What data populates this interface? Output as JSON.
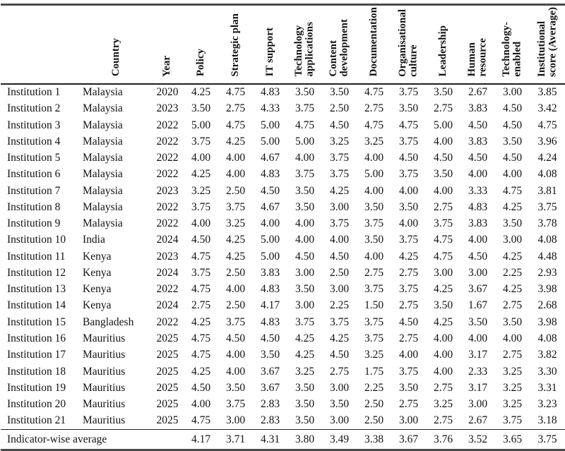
{
  "table": {
    "columns": [
      {
        "key": "institution",
        "label": ""
      },
      {
        "key": "country",
        "label": "Country"
      },
      {
        "key": "year",
        "label": "Year"
      },
      {
        "key": "policy",
        "label": "Policy"
      },
      {
        "key": "strategic_plan",
        "label": "Strategic plan"
      },
      {
        "key": "it_support",
        "label": "IT support"
      },
      {
        "key": "technology_applications",
        "label": "Technology\napplications"
      },
      {
        "key": "content_development",
        "label": "Content\ndevelopment"
      },
      {
        "key": "documentation",
        "label": "Documentation"
      },
      {
        "key": "organisational_culture",
        "label": "Organisational\nculture"
      },
      {
        "key": "leadership",
        "label": "Leadership"
      },
      {
        "key": "human_resource",
        "label": "Human\nresource"
      },
      {
        "key": "technology_enabled",
        "label": "Technology-\nenabled"
      },
      {
        "key": "institutional_score",
        "label": "Institutional\nscore (Average)"
      }
    ],
    "rows": [
      {
        "institution": "Institution 1",
        "country": "Malaysia",
        "year": "2020",
        "values": [
          "4.25",
          "4.75",
          "4.83",
          "3.50",
          "3.50",
          "4.75",
          "3.75",
          "3.50",
          "2.67",
          "3.00",
          "3.85"
        ]
      },
      {
        "institution": "Institution 2",
        "country": "Malaysia",
        "year": "2023",
        "values": [
          "3.50",
          "2.75",
          "4.33",
          "3.75",
          "2.50",
          "2.75",
          "3.50",
          "2.75",
          "3.83",
          "4.50",
          "3.42"
        ]
      },
      {
        "institution": "Institution 3",
        "country": "Malaysia",
        "year": "2022",
        "values": [
          "5.00",
          "4.75",
          "5.00",
          "4.75",
          "4.50",
          "4.75",
          "4.75",
          "5.00",
          "4.50",
          "4.50",
          "4.75"
        ]
      },
      {
        "institution": "Institution 4",
        "country": "Malaysia",
        "year": "2022",
        "values": [
          "3.75",
          "4.25",
          "5.00",
          "5.00",
          "3.25",
          "3.25",
          "3.75",
          "4.00",
          "3.83",
          "3.50",
          "3.96"
        ]
      },
      {
        "institution": "Institution 5",
        "country": "Malaysia",
        "year": "2022",
        "values": [
          "4.00",
          "4.00",
          "4.67",
          "4.00",
          "3.75",
          "4.00",
          "4.50",
          "4.50",
          "4.50",
          "4.50",
          "4.24"
        ]
      },
      {
        "institution": "Institution 6",
        "country": "Malaysia",
        "year": "2022",
        "values": [
          "4.25",
          "4.00",
          "4.83",
          "3.75",
          "3.75",
          "5.00",
          "3.75",
          "3.50",
          "4.00",
          "4.00",
          "4.08"
        ]
      },
      {
        "institution": "Institution 7",
        "country": "Malaysia",
        "year": "2023",
        "values": [
          "3.25",
          "2.50",
          "4.50",
          "3.50",
          "4.25",
          "4.00",
          "4.00",
          "4.00",
          "3.33",
          "4.75",
          "3.81"
        ]
      },
      {
        "institution": "Institution 8",
        "country": "Malaysia",
        "year": "2022",
        "values": [
          "3.75",
          "3.75",
          "4.67",
          "3.50",
          "3.00",
          "3.50",
          "3.50",
          "2.75",
          "4.83",
          "4.25",
          "3.75"
        ]
      },
      {
        "institution": "Institution 9",
        "country": "Malaysia",
        "year": "2022",
        "values": [
          "4.00",
          "3.25",
          "4.00",
          "4.00",
          "3.75",
          "3.75",
          "4.00",
          "3.75",
          "3.83",
          "3.50",
          "3.78"
        ]
      },
      {
        "institution": "Institution 10",
        "country": "India",
        "year": "2024",
        "values": [
          "4.50",
          "4.25",
          "5.00",
          "4.00",
          "4.00",
          "3.50",
          "3.75",
          "4.75",
          "4.00",
          "3.00",
          "4.08"
        ]
      },
      {
        "institution": "Institution 11",
        "country": "Kenya",
        "year": "2023",
        "values": [
          "4.75",
          "4.25",
          "5.00",
          "4.50",
          "4.50",
          "4.00",
          "4.25",
          "4.75",
          "4.50",
          "4.25",
          "4.48"
        ]
      },
      {
        "institution": "Institution 12",
        "country": "Kenya",
        "year": "2024",
        "values": [
          "3.75",
          "2.50",
          "3.83",
          "3.00",
          "2.50",
          "2.75",
          "2.75",
          "3.00",
          "3.00",
          "2.25",
          "2.93"
        ]
      },
      {
        "institution": "Institution 13",
        "country": "Kenya",
        "year": "2022",
        "values": [
          "4.75",
          "4.00",
          "4.83",
          "3.50",
          "3.00",
          "3.75",
          "3.75",
          "4.25",
          "3.67",
          "4.25",
          "3.98"
        ]
      },
      {
        "institution": "Institution 14",
        "country": "Kenya",
        "year": "2024",
        "values": [
          "2.75",
          "2.50",
          "4.17",
          "3.00",
          "2.25",
          "1.50",
          "2.75",
          "3.50",
          "1.67",
          "2.75",
          "2.68"
        ]
      },
      {
        "institution": "Institution 15",
        "country": "Bangladesh",
        "year": "2022",
        "values": [
          "4.25",
          "3.75",
          "4.83",
          "3.75",
          "3.75",
          "3.75",
          "4.50",
          "4.25",
          "3.50",
          "3.50",
          "3.98"
        ]
      },
      {
        "institution": "Institution 16",
        "country": "Mauritius",
        "year": "2025",
        "values": [
          "4.75",
          "4.50",
          "4.50",
          "4.25",
          "4.25",
          "3.75",
          "2.75",
          "4.00",
          "4.00",
          "4.00",
          "4.08"
        ]
      },
      {
        "institution": "Institution 17",
        "country": "Mauritius",
        "year": "2025",
        "values": [
          "4.75",
          "4.00",
          "3.50",
          "4.25",
          "4.50",
          "3.25",
          "4.00",
          "4.00",
          "3.17",
          "2.75",
          "3.82"
        ]
      },
      {
        "institution": "Institution 18",
        "country": "Mauritius",
        "year": "2025",
        "values": [
          "4.25",
          "4.00",
          "3.67",
          "3.25",
          "2.75",
          "1.75",
          "3.75",
          "4.00",
          "2.33",
          "3.25",
          "3.30"
        ]
      },
      {
        "institution": "Institution 19",
        "country": "Mauritius",
        "year": "2025",
        "values": [
          "4.50",
          "3.50",
          "3.67",
          "3.50",
          "3.00",
          "2.25",
          "3.50",
          "2.75",
          "3.17",
          "3.25",
          "3.31"
        ]
      },
      {
        "institution": "Institution 20",
        "country": "Mauritius",
        "year": "2025",
        "values": [
          "4.00",
          "3.75",
          "2.83",
          "3.50",
          "3.50",
          "2.50",
          "2.75",
          "3.25",
          "3.00",
          "3.25",
          "3.23"
        ]
      },
      {
        "institution": "Institution 21",
        "country": "Mauritius",
        "year": "2025",
        "values": [
          "4.75",
          "3.00",
          "2.83",
          "3.50",
          "3.00",
          "2.50",
          "3.00",
          "2.75",
          "2.67",
          "3.75",
          "3.18"
        ]
      }
    ],
    "footer": {
      "label": "Indicator-wise average",
      "values": [
        "4.17",
        "3.71",
        "4.31",
        "3.80",
        "3.49",
        "3.38",
        "3.67",
        "3.76",
        "3.52",
        "3.65",
        "3.75"
      ]
    }
  }
}
